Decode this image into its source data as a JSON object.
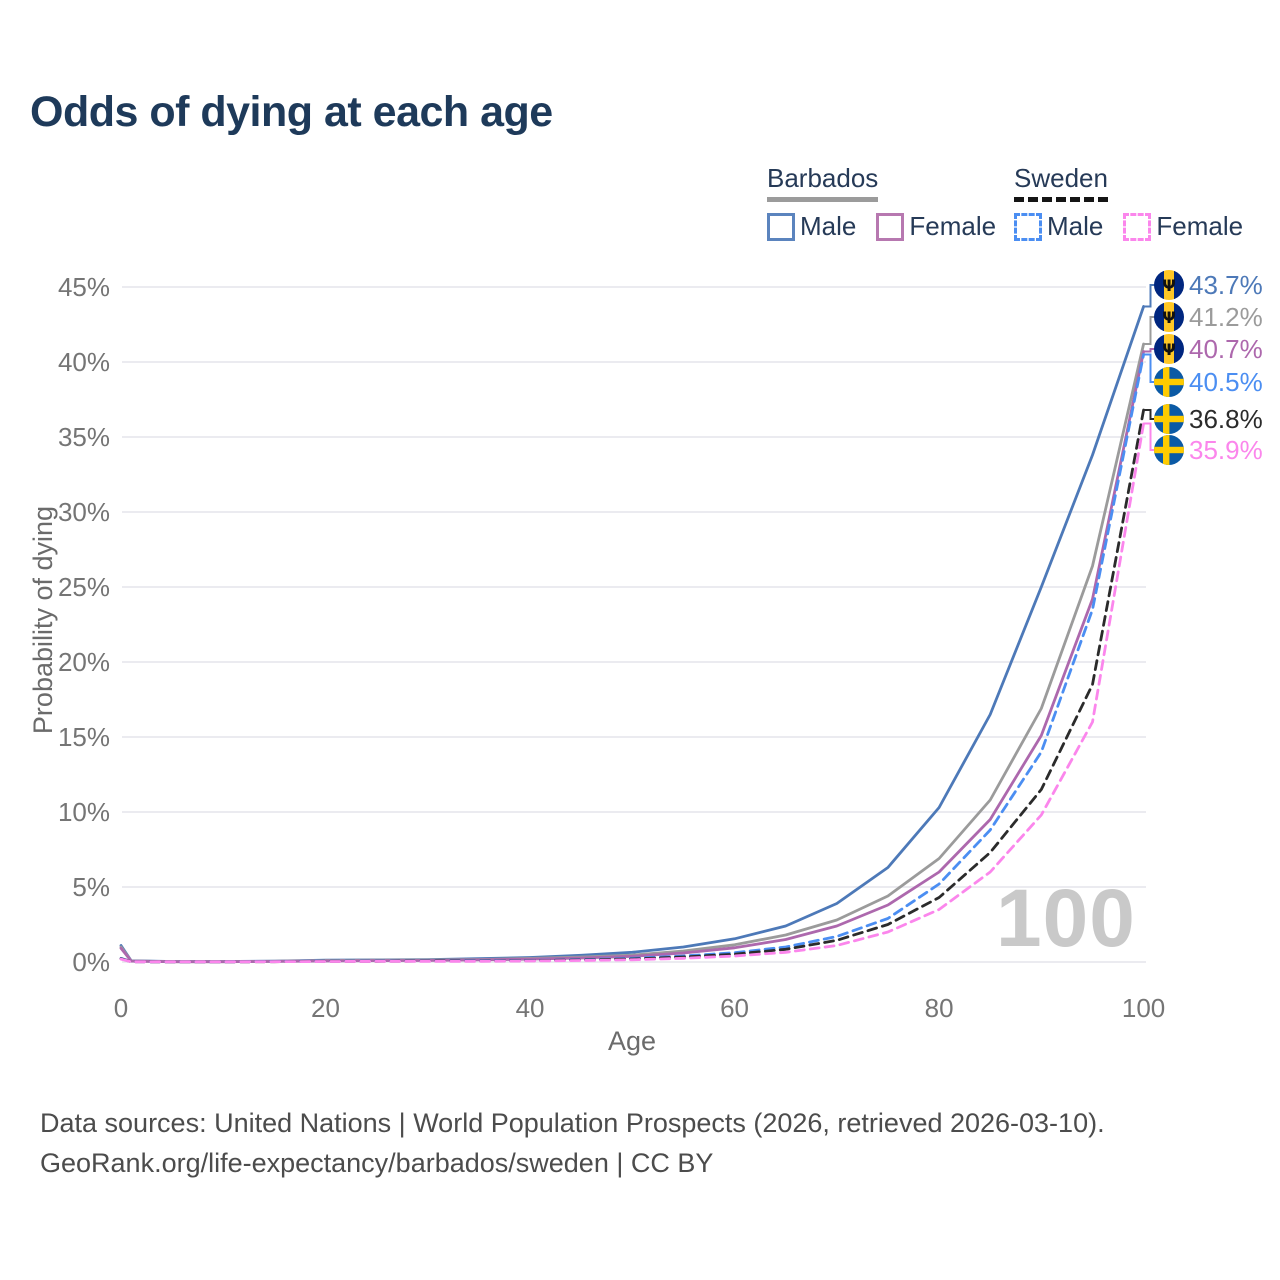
{
  "title": "Odds of dying at each age",
  "watermark_age": "100",
  "legend": {
    "groups": [
      {
        "label": "Barbados",
        "line_style": "solid",
        "underline_color": "#9b9b9b",
        "items": [
          {
            "label": "Male",
            "color": "#4d79b8"
          },
          {
            "label": "Female",
            "color": "#b06cb3"
          }
        ]
      },
      {
        "label": "Sweden",
        "line_style": "dashed",
        "underline_color": "#151515",
        "items": [
          {
            "label": "Male",
            "color": "#4b8ef2"
          },
          {
            "label": "Female",
            "color": "#fb86ec"
          }
        ]
      }
    ]
  },
  "chart_data": {
    "type": "line",
    "title": "Odds of dying at each age",
    "xlabel": "Age",
    "ylabel": "Probability of dying",
    "xlim": [
      0,
      100
    ],
    "ylim": [
      0,
      45
    ],
    "xticks": [
      0,
      20,
      40,
      60,
      80,
      100
    ],
    "yticks": [
      0,
      5,
      10,
      15,
      20,
      25,
      30,
      35,
      40,
      45
    ],
    "ytick_suffix": "%",
    "grid": "horizontal-only",
    "legend_position": "top-right",
    "series": [
      {
        "name": "Barbados Male",
        "country": "Barbados",
        "sex": "Male",
        "color": "#4d79b8",
        "dash": "solid",
        "end_value_pct": 43.7,
        "points": [
          [
            0,
            1.1
          ],
          [
            1,
            0.08
          ],
          [
            5,
            0.03
          ],
          [
            10,
            0.03
          ],
          [
            15,
            0.06
          ],
          [
            20,
            0.12
          ],
          [
            25,
            0.14
          ],
          [
            30,
            0.16
          ],
          [
            35,
            0.22
          ],
          [
            40,
            0.3
          ],
          [
            45,
            0.45
          ],
          [
            50,
            0.65
          ],
          [
            55,
            1.0
          ],
          [
            60,
            1.55
          ],
          [
            65,
            2.4
          ],
          [
            70,
            3.9
          ],
          [
            75,
            6.3
          ],
          [
            80,
            10.3
          ],
          [
            85,
            16.5
          ],
          [
            90,
            25.0
          ],
          [
            95,
            33.8
          ],
          [
            100,
            43.7
          ]
        ]
      },
      {
        "name": "Barbados Both sexes",
        "country": "Barbados",
        "sex": "Both",
        "color": "#9b9b9b",
        "dash": "solid",
        "end_value_pct": 41.2,
        "points": [
          [
            0,
            1.0
          ],
          [
            1,
            0.07
          ],
          [
            5,
            0.02
          ],
          [
            10,
            0.02
          ],
          [
            15,
            0.05
          ],
          [
            20,
            0.1
          ],
          [
            25,
            0.12
          ],
          [
            30,
            0.13
          ],
          [
            35,
            0.17
          ],
          [
            40,
            0.24
          ],
          [
            45,
            0.33
          ],
          [
            50,
            0.46
          ],
          [
            55,
            0.73
          ],
          [
            60,
            1.15
          ],
          [
            65,
            1.8
          ],
          [
            70,
            2.8
          ],
          [
            75,
            4.4
          ],
          [
            80,
            6.9
          ],
          [
            85,
            10.8
          ],
          [
            90,
            16.9
          ],
          [
            95,
            26.4
          ],
          [
            100,
            41.2
          ]
        ]
      },
      {
        "name": "Barbados Female",
        "country": "Barbados",
        "sex": "Female",
        "color": "#ad68ad",
        "dash": "solid",
        "end_value_pct": 40.7,
        "points": [
          [
            0,
            0.92
          ],
          [
            1,
            0.06
          ],
          [
            5,
            0.02
          ],
          [
            10,
            0.02
          ],
          [
            15,
            0.04
          ],
          [
            20,
            0.07
          ],
          [
            25,
            0.09
          ],
          [
            30,
            0.1
          ],
          [
            35,
            0.14
          ],
          [
            40,
            0.19
          ],
          [
            45,
            0.27
          ],
          [
            50,
            0.38
          ],
          [
            55,
            0.6
          ],
          [
            60,
            0.95
          ],
          [
            65,
            1.5
          ],
          [
            70,
            2.4
          ],
          [
            75,
            3.8
          ],
          [
            80,
            6.0
          ],
          [
            85,
            9.5
          ],
          [
            90,
            15.1
          ],
          [
            95,
            24.2
          ],
          [
            100,
            40.7
          ]
        ]
      },
      {
        "name": "Sweden Male",
        "country": "Sweden",
        "sex": "Male",
        "color": "#4b8ef2",
        "dash": "dashed",
        "end_value_pct": 40.5,
        "points": [
          [
            0,
            0.25
          ],
          [
            1,
            0.02
          ],
          [
            5,
            0.01
          ],
          [
            10,
            0.01
          ],
          [
            15,
            0.03
          ],
          [
            20,
            0.06
          ],
          [
            25,
            0.07
          ],
          [
            30,
            0.07
          ],
          [
            35,
            0.09
          ],
          [
            40,
            0.11
          ],
          [
            45,
            0.16
          ],
          [
            50,
            0.25
          ],
          [
            55,
            0.4
          ],
          [
            60,
            0.62
          ],
          [
            65,
            1.0
          ],
          [
            70,
            1.7
          ],
          [
            75,
            2.9
          ],
          [
            80,
            5.2
          ],
          [
            85,
            8.8
          ],
          [
            90,
            14.0
          ],
          [
            95,
            23.5
          ],
          [
            100,
            40.5
          ]
        ]
      },
      {
        "name": "Sweden Both sexes",
        "country": "Sweden",
        "sex": "Both",
        "color": "#2b2b2b",
        "dash": "dashed",
        "end_value_pct": 36.8,
        "points": [
          [
            0,
            0.22
          ],
          [
            1,
            0.02
          ],
          [
            5,
            0.01
          ],
          [
            10,
            0.01
          ],
          [
            15,
            0.02
          ],
          [
            20,
            0.05
          ],
          [
            25,
            0.05
          ],
          [
            30,
            0.06
          ],
          [
            35,
            0.07
          ],
          [
            40,
            0.09
          ],
          [
            45,
            0.13
          ],
          [
            50,
            0.2
          ],
          [
            55,
            0.33
          ],
          [
            60,
            0.52
          ],
          [
            65,
            0.85
          ],
          [
            70,
            1.45
          ],
          [
            75,
            2.5
          ],
          [
            80,
            4.3
          ],
          [
            85,
            7.3
          ],
          [
            90,
            11.5
          ],
          [
            95,
            18.5
          ],
          [
            100,
            36.8
          ]
        ]
      },
      {
        "name": "Sweden Female",
        "country": "Sweden",
        "sex": "Female",
        "color": "#fb86ec",
        "dash": "dashed",
        "end_value_pct": 35.9,
        "points": [
          [
            0,
            0.19
          ],
          [
            1,
            0.015
          ],
          [
            5,
            0.01
          ],
          [
            10,
            0.01
          ],
          [
            15,
            0.02
          ],
          [
            20,
            0.03
          ],
          [
            25,
            0.04
          ],
          [
            30,
            0.04
          ],
          [
            35,
            0.05
          ],
          [
            40,
            0.07
          ],
          [
            45,
            0.1
          ],
          [
            50,
            0.15
          ],
          [
            55,
            0.25
          ],
          [
            60,
            0.4
          ],
          [
            65,
            0.65
          ],
          [
            70,
            1.1
          ],
          [
            75,
            2.0
          ],
          [
            80,
            3.5
          ],
          [
            85,
            6.0
          ],
          [
            90,
            9.8
          ],
          [
            95,
            16.0
          ],
          [
            100,
            35.9
          ]
        ]
      }
    ]
  },
  "end_labels": [
    {
      "flag": "barbados",
      "text": "43.7%",
      "color": "#4d79b8"
    },
    {
      "flag": "barbados",
      "text": "41.2%",
      "color": "#9b9b9b"
    },
    {
      "flag": "barbados",
      "text": "40.7%",
      "color": "#ad68ad"
    },
    {
      "flag": "sweden",
      "text": "40.5%",
      "color": "#4b8ef2"
    },
    {
      "flag": "sweden",
      "text": "36.8%",
      "color": "#2b2b2b"
    },
    {
      "flag": "sweden",
      "text": "35.9%",
      "color": "#fb86ec"
    }
  ],
  "footer": {
    "line1": "Data sources: United Nations | World Population Prospects (2026, retrieved 2026-03-10).",
    "line2": "GeoRank.org/life-expectancy/barbados/sweden | CC BY"
  },
  "colors": {
    "title": "#1e3a5a",
    "legend_text": "#263a57",
    "tick_text": "#757575",
    "axis_title_text": "#6b6b6b",
    "gridline": "#ebebf0",
    "watermark": "#c9c9c9",
    "footer_text": "#4c4c4c"
  }
}
